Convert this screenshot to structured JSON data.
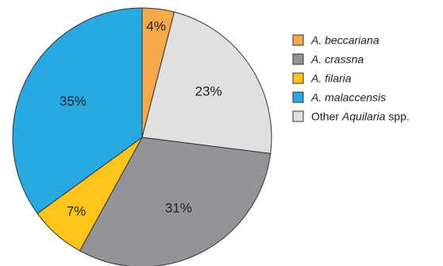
{
  "chart_data": {
    "type": "pie",
    "title": "",
    "slices": [
      {
        "name_plain": "",
        "name_italic": "A. beccariana",
        "name_suffix": "",
        "value": 4,
        "label": "4%",
        "color": "#F5A94A"
      },
      {
        "name_plain": "Other ",
        "name_italic": "Aquilaria",
        "name_suffix": " spp.",
        "value": 23,
        "label": "23%",
        "color": "#E0E0E2"
      },
      {
        "name_plain": "",
        "name_italic": "A. crassna",
        "name_suffix": "",
        "value": 31,
        "label": "31%",
        "color": "#929497"
      },
      {
        "name_plain": "",
        "name_italic": "A. filaria",
        "name_suffix": "",
        "value": 7,
        "label": "7%",
        "color": "#FFC51B"
      },
      {
        "name_plain": "",
        "name_italic": "A. malaccensis",
        "name_suffix": "",
        "value": 35,
        "label": "35%",
        "color": "#27A9E1"
      }
    ],
    "legend_order": [
      "A. beccariana",
      "A. crassna",
      "A. filaria",
      "A. malaccensis",
      "Aquilaria"
    ],
    "legend_position": "right",
    "start": "top",
    "direction": "clockwise",
    "edge_color": "#333333"
  }
}
